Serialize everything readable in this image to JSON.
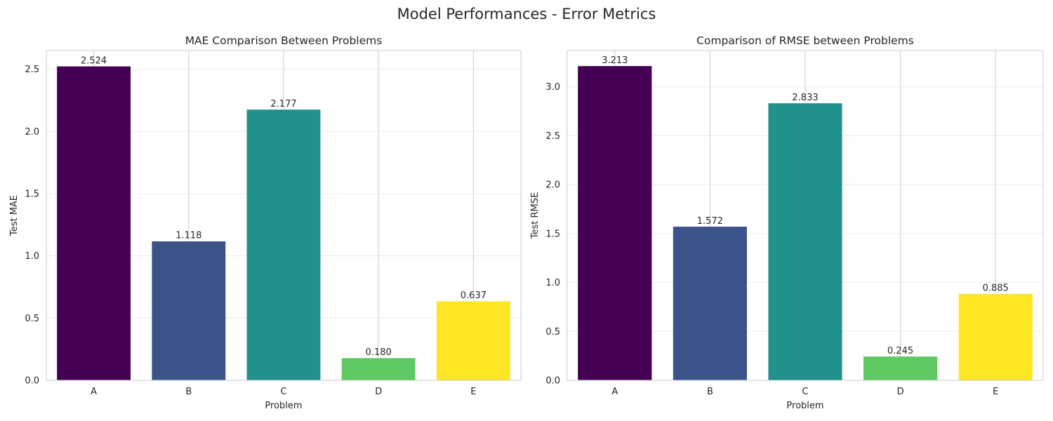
{
  "figure_title": "Model Performances - Error Metrics",
  "chart_data": [
    {
      "type": "bar",
      "title": "MAE Comparison Between Problems",
      "xlabel": "Problem",
      "ylabel": "Test MAE",
      "categories": [
        "A",
        "B",
        "C",
        "D",
        "E"
      ],
      "values": [
        2.524,
        1.118,
        2.177,
        0.18,
        0.637
      ],
      "value_labels": [
        "2.524",
        "1.118",
        "2.177",
        "0.180",
        "0.637"
      ],
      "ylim": [
        0,
        2.65
      ],
      "yticks": [
        0.0,
        0.5,
        1.0,
        1.5,
        2.0,
        2.5
      ],
      "ytick_labels": [
        "0.0",
        "0.5",
        "1.0",
        "1.5",
        "2.0",
        "2.5"
      ],
      "grid": true,
      "colors": [
        "#440154",
        "#3b528b",
        "#21918c",
        "#5ec962",
        "#fde725"
      ]
    },
    {
      "type": "bar",
      "title": "Comparison of RMSE between Problems",
      "xlabel": "Problem",
      "ylabel": "Test RMSE",
      "categories": [
        "A",
        "B",
        "C",
        "D",
        "E"
      ],
      "values": [
        3.213,
        1.572,
        2.833,
        0.245,
        0.885
      ],
      "value_labels": [
        "3.213",
        "1.572",
        "2.833",
        "0.245",
        "0.885"
      ],
      "ylim": [
        0,
        3.37
      ],
      "yticks": [
        0.0,
        0.5,
        1.0,
        1.5,
        2.0,
        2.5,
        3.0
      ],
      "ytick_labels": [
        "0.0",
        "0.5",
        "1.0",
        "1.5",
        "2.0",
        "2.5",
        "3.0"
      ],
      "grid": true,
      "colors": [
        "#440154",
        "#3b528b",
        "#21918c",
        "#5ec962",
        "#fde725"
      ]
    }
  ]
}
